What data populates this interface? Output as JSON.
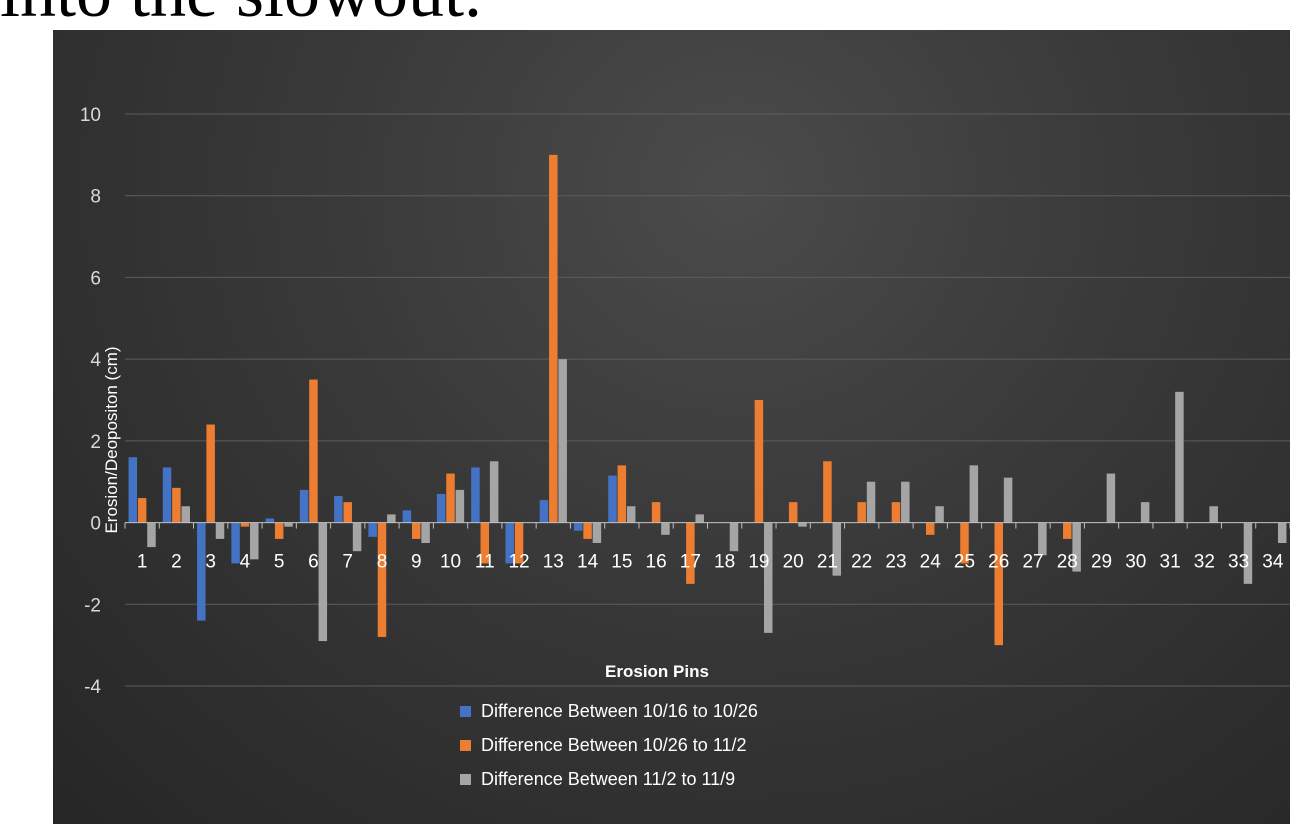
{
  "top_text": "into the slowout.",
  "chart_data": {
    "type": "bar",
    "title": "",
    "xlabel": "Erosion Pins",
    "ylabel": "Erosion/Deopositon (cm)",
    "ylim": [
      -4,
      10
    ],
    "yticks": [
      -4,
      -2,
      0,
      2,
      4,
      6,
      8,
      10
    ],
    "grid": true,
    "legend_position": "bottom",
    "categories": [
      "1",
      "2",
      "3",
      "4",
      "5",
      "6",
      "7",
      "8",
      "9",
      "10",
      "11",
      "12",
      "13",
      "14",
      "15",
      "16",
      "17",
      "18",
      "19",
      "20",
      "21",
      "22",
      "23",
      "24",
      "25",
      "26",
      "27",
      "28",
      "29",
      "30",
      "31",
      "32",
      "33",
      "34"
    ],
    "series": [
      {
        "name": "Difference Between 10/16 to 10/26",
        "color": "#4472c4",
        "values": [
          1.6,
          1.35,
          -2.4,
          -1.0,
          0.1,
          0.8,
          0.65,
          -0.35,
          0.3,
          0.7,
          1.35,
          -1.0,
          0.55,
          -0.2,
          1.15,
          0,
          0,
          0,
          0,
          0,
          0,
          0,
          0,
          0,
          0,
          0,
          0,
          0,
          0,
          0,
          0,
          0,
          0,
          0
        ]
      },
      {
        "name": "Difference Between 10/26 to 11/2",
        "color": "#ed7d31",
        "values": [
          0.6,
          0.85,
          2.4,
          -0.1,
          -0.4,
          3.5,
          0.5,
          -2.8,
          -0.4,
          1.2,
          -1.0,
          -1.0,
          9.0,
          -0.4,
          1.4,
          0.5,
          -1.5,
          0,
          3.0,
          0.5,
          1.5,
          0.5,
          0.5,
          -0.3,
          -1.0,
          -3.0,
          0,
          -0.4,
          0,
          0,
          0,
          0,
          0,
          0
        ]
      },
      {
        "name": "Difference Between 11/2 to 11/9",
        "color": "#a5a5a5",
        "values": [
          -0.6,
          0.4,
          -0.4,
          -0.9,
          -0.1,
          -2.9,
          -0.7,
          0.2,
          -0.5,
          0.8,
          1.5,
          0,
          4.0,
          -0.5,
          0.4,
          -0.3,
          0.2,
          -0.7,
          -2.7,
          -0.1,
          -1.3,
          1.0,
          1.0,
          0.4,
          1.4,
          1.1,
          -0.8,
          -1.2,
          1.2,
          0.5,
          3.2,
          0.4,
          -1.5,
          -0.5
        ]
      }
    ]
  }
}
